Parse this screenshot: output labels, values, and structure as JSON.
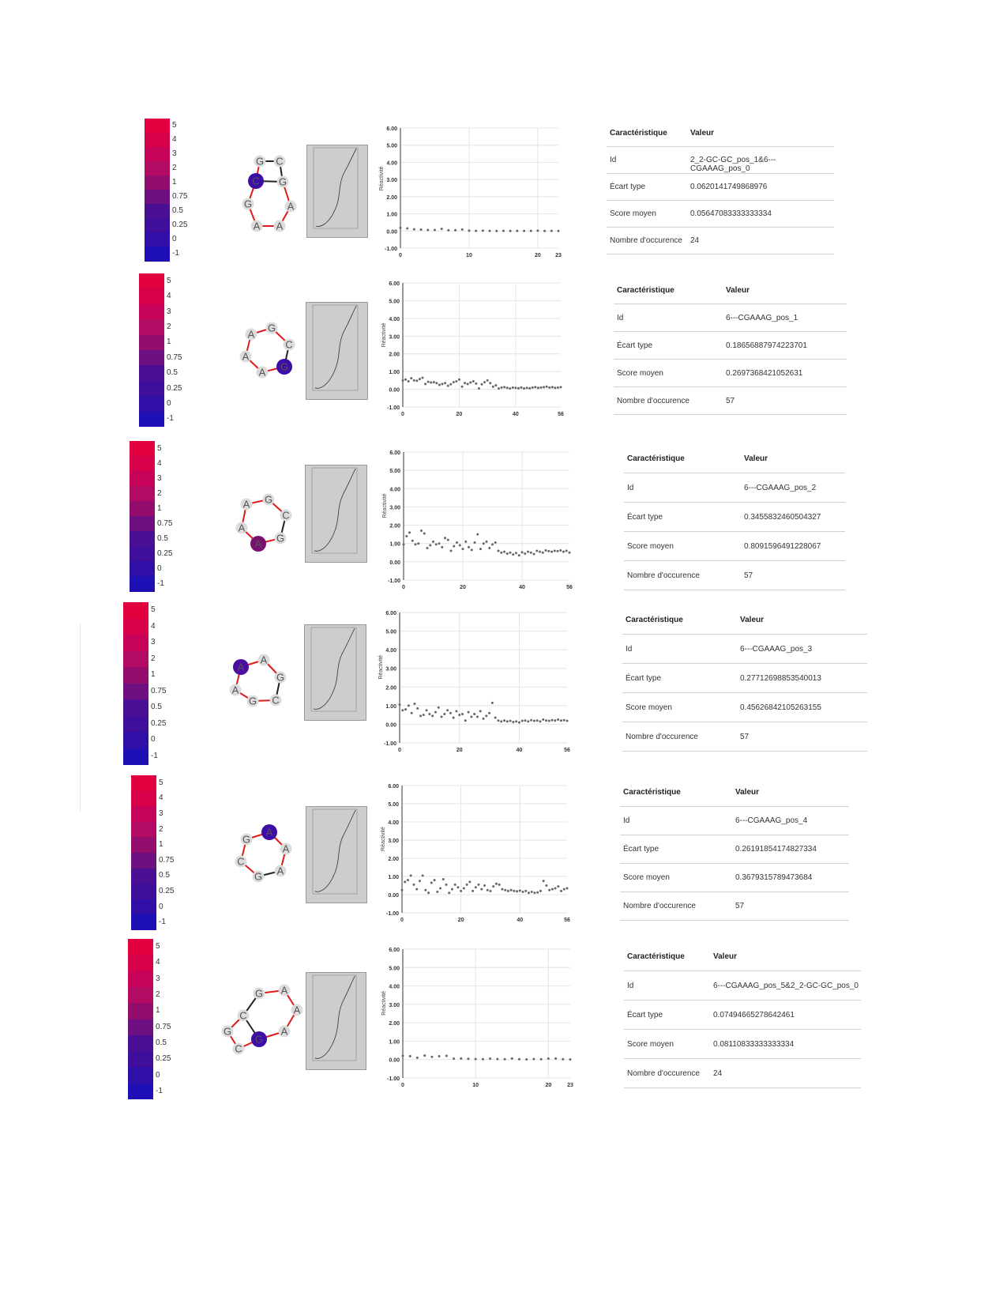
{
  "colorbar": {
    "ticks": [
      "5",
      "4",
      "3",
      "2",
      "1",
      "0.75",
      "0.5",
      "0.25",
      "0",
      "-1"
    ],
    "colors": [
      "#e3003f",
      "#d6004b",
      "#c60358",
      "#b30a63",
      "#930d6c",
      "#6e0f82",
      "#4b0f93",
      "#3f0f9c",
      "#2f0fa6",
      "#1f10b6"
    ]
  },
  "table_headers": {
    "col1": "Caractéristique",
    "col2": "Valeur"
  },
  "y_axis_title": "Réactivité",
  "rows": [
    {
      "motif": {
        "nodes": [
          {
            "letter": "G",
            "highlight": false
          },
          {
            "letter": "C",
            "highlight": false
          },
          {
            "letter": "G",
            "highlight": false
          },
          {
            "letter": "A",
            "highlight": false
          },
          {
            "letter": "A",
            "highlight": false
          },
          {
            "letter": "A",
            "highlight": false
          },
          {
            "letter": "G",
            "highlight": false
          },
          {
            "letter": "C",
            "highlight": true
          }
        ],
        "highlight_color": "#3d0fa6"
      },
      "table": [
        {
          "label": "Id",
          "value": "2_2-GC-GC_pos_1&6---CGAAAG_pos_0"
        },
        {
          "label": "Écart type",
          "value": "0.0620141749868976"
        },
        {
          "label": "Score moyen",
          "value": "0.05647083333333334"
        },
        {
          "label": "Nombre d'occurence",
          "value": "24"
        }
      ]
    },
    {
      "motif": {
        "nodes": [
          {
            "letter": "A",
            "highlight": false
          },
          {
            "letter": "G",
            "highlight": false
          },
          {
            "letter": "C",
            "highlight": false
          },
          {
            "letter": "G",
            "highlight": true
          },
          {
            "letter": "A",
            "highlight": false
          },
          {
            "letter": "A",
            "highlight": false
          }
        ],
        "highlight_color": "#3d0fa6"
      },
      "table": [
        {
          "label": "Id",
          "value": "6---CGAAAG_pos_1"
        },
        {
          "label": "Écart type",
          "value": "0.18656887974223701"
        },
        {
          "label": "Score moyen",
          "value": "0.2697368421052631"
        },
        {
          "label": "Nombre d'occurence",
          "value": "57"
        }
      ]
    },
    {
      "motif": {
        "nodes": [
          {
            "letter": "A",
            "highlight": false
          },
          {
            "letter": "G",
            "highlight": false
          },
          {
            "letter": "C",
            "highlight": false
          },
          {
            "letter": "G",
            "highlight": false
          },
          {
            "letter": "A",
            "highlight": true
          },
          {
            "letter": "A",
            "highlight": false
          }
        ],
        "highlight_color": "#7a1070"
      },
      "table": [
        {
          "label": "Id",
          "value": "6---CGAAAG_pos_2"
        },
        {
          "label": "Écart type",
          "value": "0.3455832460504327"
        },
        {
          "label": "Score moyen",
          "value": "0.8091596491228067"
        },
        {
          "label": "Nombre d'occurence",
          "value": "57"
        }
      ]
    },
    {
      "motif": {
        "nodes": [
          {
            "letter": "A",
            "highlight": false
          },
          {
            "letter": "G",
            "highlight": false
          },
          {
            "letter": "C",
            "highlight": false
          },
          {
            "letter": "G",
            "highlight": false
          },
          {
            "letter": "A",
            "highlight": false
          },
          {
            "letter": "A",
            "highlight": true
          }
        ],
        "highlight_color": "#4a0fa0"
      },
      "table": [
        {
          "label": "Id",
          "value": "6---CGAAAG_pos_3"
        },
        {
          "label": "Écart type",
          "value": "0.27712698853540013"
        },
        {
          "label": "Score moyen",
          "value": "0.45626842105263155"
        },
        {
          "label": "Nombre d'occurence",
          "value": "57"
        }
      ]
    },
    {
      "motif": {
        "nodes": [
          {
            "letter": "A",
            "highlight": true
          },
          {
            "letter": "G",
            "highlight": false
          },
          {
            "letter": "C",
            "highlight": false
          },
          {
            "letter": "G",
            "highlight": false
          },
          {
            "letter": "A",
            "highlight": false
          },
          {
            "letter": "A",
            "highlight": false
          }
        ],
        "highlight_color": "#3d0fa6"
      },
      "table": [
        {
          "label": "Id",
          "value": "6---CGAAAG_pos_4"
        },
        {
          "label": "Écart type",
          "value": "0.26191854174827334"
        },
        {
          "label": "Score moyen",
          "value": "0.3679315789473684"
        },
        {
          "label": "Nombre d'occurence",
          "value": "57"
        }
      ]
    },
    {
      "motif": {
        "nodes": [
          {
            "letter": "G",
            "highlight": false
          },
          {
            "letter": "A",
            "highlight": false
          },
          {
            "letter": "A",
            "highlight": false
          },
          {
            "letter": "A",
            "highlight": false
          },
          {
            "letter": "G",
            "highlight": true
          },
          {
            "letter": "C",
            "highlight": false
          },
          {
            "letter": "G",
            "highlight": false
          },
          {
            "letter": "C",
            "highlight": false
          }
        ],
        "highlight_color": "#3d0fa6"
      },
      "table": [
        {
          "label": "Id",
          "value": "6---CGAAAG_pos_5&2_2-GC-GC_pos_0"
        },
        {
          "label": "Écart type",
          "value": "0.07494665278642461"
        },
        {
          "label": "Score moyen",
          "value": "0.08110833333333334"
        },
        {
          "label": "Nombre d'occurence",
          "value": "24"
        }
      ]
    }
  ],
  "chart_data": [
    {
      "type": "scatter",
      "ylabel": "Réactivité",
      "ylim": [
        -1,
        6
      ],
      "yticks": [
        "6.00",
        "5.00",
        "4.00",
        "3.00",
        "2.00",
        "1.00",
        "0.00",
        "-1.00"
      ],
      "xlim": [
        0,
        23
      ],
      "xticks": [
        0,
        10,
        20,
        23
      ],
      "x": [
        0,
        1,
        2,
        3,
        4,
        5,
        6,
        7,
        8,
        9,
        10,
        11,
        12,
        13,
        14,
        15,
        16,
        17,
        18,
        19,
        20,
        21,
        22,
        23
      ],
      "y": [
        0.18,
        0.15,
        0.1,
        0.08,
        0.06,
        0.06,
        0.12,
        0.04,
        0.05,
        0.09,
        0.02,
        0.01,
        0.02,
        0.01,
        0.0,
        0.01,
        0.0,
        0.01,
        0.0,
        0.01,
        0.02,
        0.0,
        0.01,
        0.0
      ]
    },
    {
      "type": "scatter",
      "ylabel": "Réactivité",
      "ylim": [
        -1,
        6
      ],
      "yticks": [
        "6.00",
        "5.00",
        "4.00",
        "3.00",
        "2.00",
        "1.00",
        "0.00",
        "-1.00"
      ],
      "xlim": [
        0,
        56
      ],
      "xticks": [
        0,
        20,
        40,
        56
      ],
      "x": [
        0,
        1,
        2,
        3,
        4,
        5,
        6,
        7,
        8,
        9,
        10,
        11,
        12,
        13,
        14,
        15,
        16,
        17,
        18,
        19,
        20,
        21,
        22,
        23,
        24,
        25,
        26,
        27,
        28,
        29,
        30,
        31,
        32,
        33,
        34,
        35,
        36,
        37,
        38,
        39,
        40,
        41,
        42,
        43,
        44,
        45,
        46,
        47,
        48,
        49,
        50,
        51,
        52,
        53,
        54,
        55,
        56
      ],
      "y": [
        0.5,
        0.55,
        0.45,
        0.62,
        0.5,
        0.48,
        0.58,
        0.65,
        0.3,
        0.42,
        0.38,
        0.4,
        0.35,
        0.25,
        0.3,
        0.35,
        0.2,
        0.28,
        0.4,
        0.45,
        0.55,
        0.15,
        0.35,
        0.3,
        0.38,
        0.45,
        0.32,
        0.05,
        0.28,
        0.4,
        0.5,
        0.35,
        0.15,
        0.22,
        0.05,
        0.1,
        0.12,
        0.08,
        0.05,
        0.1,
        0.08,
        0.06,
        0.1,
        0.05,
        0.08,
        0.06,
        0.1,
        0.12,
        0.08,
        0.1,
        0.12,
        0.15,
        0.1,
        0.12,
        0.08,
        0.1,
        0.12
      ]
    },
    {
      "type": "scatter",
      "ylabel": "Réactivité",
      "ylim": [
        -1,
        6
      ],
      "yticks": [
        "6.00",
        "5.00",
        "4.00",
        "3.00",
        "2.00",
        "1.00",
        "0.00",
        "-1.00"
      ],
      "xlim": [
        0,
        56
      ],
      "xticks": [
        0,
        20,
        40,
        56
      ],
      "x": [
        0,
        1,
        2,
        3,
        4,
        5,
        6,
        7,
        8,
        9,
        10,
        11,
        12,
        13,
        14,
        15,
        16,
        17,
        18,
        19,
        20,
        21,
        22,
        23,
        24,
        25,
        26,
        27,
        28,
        29,
        30,
        31,
        32,
        33,
        34,
        35,
        36,
        37,
        38,
        39,
        40,
        41,
        42,
        43,
        44,
        45,
        46,
        47,
        48,
        49,
        50,
        51,
        52,
        53,
        54,
        55,
        56
      ],
      "y": [
        0.95,
        1.4,
        1.6,
        1.15,
        0.95,
        1.0,
        1.7,
        1.55,
        0.75,
        0.9,
        1.1,
        0.95,
        1.0,
        0.8,
        1.3,
        1.2,
        0.6,
        0.85,
        1.05,
        0.9,
        0.7,
        1.1,
        0.8,
        0.65,
        1.05,
        1.5,
        0.7,
        1.0,
        1.1,
        0.75,
        0.95,
        1.05,
        0.6,
        0.5,
        0.55,
        0.45,
        0.5,
        0.4,
        0.48,
        0.35,
        0.52,
        0.45,
        0.55,
        0.5,
        0.42,
        0.6,
        0.55,
        0.5,
        0.62,
        0.58,
        0.55,
        0.6,
        0.58,
        0.62,
        0.55,
        0.6,
        0.5
      ]
    },
    {
      "type": "scatter",
      "ylabel": "Réactivité",
      "ylim": [
        -1,
        6
      ],
      "yticks": [
        "6.00",
        "5.00",
        "4.00",
        "3.00",
        "2.00",
        "1.00",
        "0.00",
        "-1.00"
      ],
      "xlim": [
        0,
        56
      ],
      "xticks": [
        0,
        20,
        40,
        56
      ],
      "x": [
        0,
        1,
        2,
        3,
        4,
        5,
        6,
        7,
        8,
        9,
        10,
        11,
        12,
        13,
        14,
        15,
        16,
        17,
        18,
        19,
        20,
        21,
        22,
        23,
        24,
        25,
        26,
        27,
        28,
        29,
        30,
        31,
        32,
        33,
        34,
        35,
        36,
        37,
        38,
        39,
        40,
        41,
        42,
        43,
        44,
        45,
        46,
        47,
        48,
        49,
        50,
        51,
        52,
        53,
        54,
        55,
        56
      ],
      "y": [
        1.05,
        0.75,
        0.8,
        1.0,
        0.6,
        1.1,
        0.85,
        0.45,
        0.5,
        0.75,
        0.55,
        0.45,
        0.65,
        0.9,
        0.4,
        0.55,
        0.75,
        0.6,
        0.35,
        0.7,
        0.5,
        0.55,
        0.2,
        0.65,
        0.4,
        0.55,
        0.4,
        0.7,
        0.3,
        0.45,
        0.6,
        1.15,
        0.35,
        0.2,
        0.15,
        0.2,
        0.15,
        0.18,
        0.12,
        0.15,
        0.1,
        0.18,
        0.2,
        0.15,
        0.22,
        0.18,
        0.2,
        0.15,
        0.25,
        0.2,
        0.18,
        0.22,
        0.2,
        0.25,
        0.2,
        0.22,
        0.18
      ]
    },
    {
      "type": "scatter",
      "ylabel": "Réactivité",
      "ylim": [
        -1,
        6
      ],
      "yticks": [
        "6.00",
        "5.00",
        "4.00",
        "3.00",
        "2.00",
        "1.00",
        "0.00",
        "-1.00"
      ],
      "xlim": [
        0,
        56
      ],
      "xticks": [
        0,
        20,
        40,
        56
      ],
      "x": [
        0,
        1,
        2,
        3,
        4,
        5,
        6,
        7,
        8,
        9,
        10,
        11,
        12,
        13,
        14,
        15,
        16,
        17,
        18,
        19,
        20,
        21,
        22,
        23,
        24,
        25,
        26,
        27,
        28,
        29,
        30,
        31,
        32,
        33,
        34,
        35,
        36,
        37,
        38,
        39,
        40,
        41,
        42,
        43,
        44,
        45,
        46,
        47,
        48,
        49,
        50,
        51,
        52,
        53,
        54,
        55,
        56
      ],
      "y": [
        0.25,
        0.7,
        0.8,
        1.05,
        0.55,
        0.3,
        0.75,
        1.05,
        0.25,
        0.1,
        0.65,
        0.8,
        0.15,
        0.35,
        0.85,
        0.55,
        0.1,
        0.3,
        0.55,
        0.4,
        0.2,
        0.35,
        0.55,
        0.7,
        0.2,
        0.4,
        0.55,
        0.3,
        0.5,
        0.25,
        0.2,
        0.45,
        0.6,
        0.55,
        0.3,
        0.25,
        0.2,
        0.25,
        0.2,
        0.18,
        0.22,
        0.15,
        0.2,
        0.1,
        0.15,
        0.1,
        0.12,
        0.2,
        0.75,
        0.5,
        0.25,
        0.3,
        0.35,
        0.45,
        0.2,
        0.3,
        0.35
      ]
    },
    {
      "type": "scatter",
      "ylabel": "Réactivité",
      "ylim": [
        -1,
        6
      ],
      "yticks": [
        "6.00",
        "5.00",
        "4.00",
        "3.00",
        "2.00",
        "1.00",
        "0.00",
        "-1.00"
      ],
      "xlim": [
        0,
        23
      ],
      "xticks": [
        0,
        10,
        20,
        23
      ],
      "x": [
        0,
        1,
        2,
        3,
        4,
        5,
        6,
        7,
        8,
        9,
        10,
        11,
        12,
        13,
        14,
        15,
        16,
        17,
        18,
        19,
        20,
        21,
        22,
        23
      ],
      "y": [
        0.2,
        0.18,
        0.1,
        0.22,
        0.15,
        0.18,
        0.2,
        0.05,
        0.06,
        0.04,
        0.03,
        0.02,
        0.05,
        0.03,
        0.02,
        0.06,
        0.02,
        0.01,
        0.03,
        0.02,
        0.05,
        0.06,
        0.02,
        0.01
      ]
    }
  ]
}
